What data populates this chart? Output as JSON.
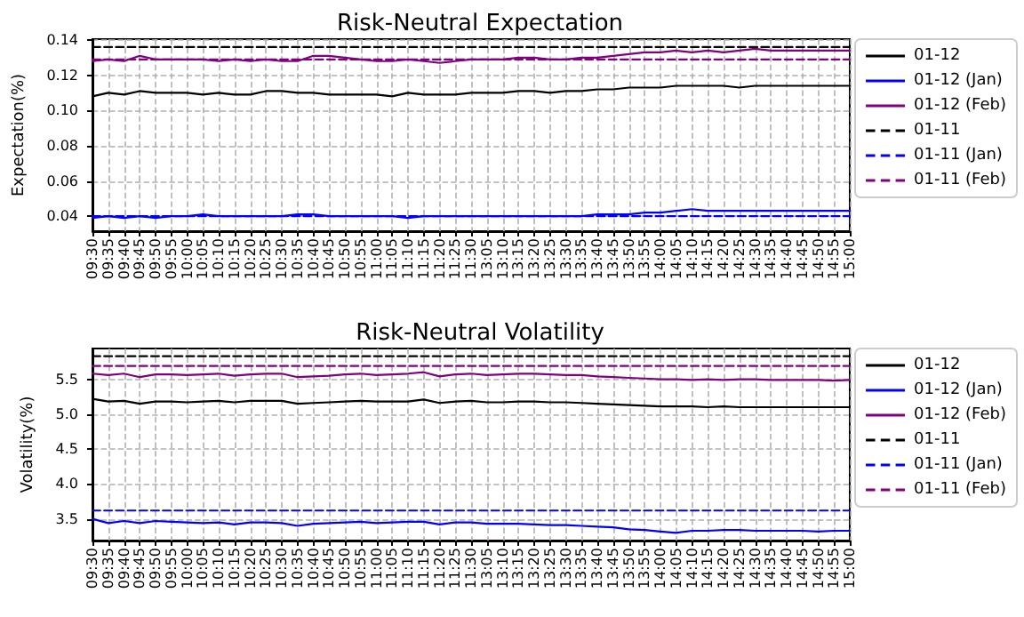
{
  "chart_data": [
    {
      "type": "line",
      "title": "Risk-Neutral Expectation",
      "ylabel": "Expectation(%)",
      "categories": [
        "09:30",
        "09:35",
        "09:40",
        "09:45",
        "09:50",
        "09:55",
        "10:00",
        "10:05",
        "10:10",
        "10:15",
        "10:20",
        "10:25",
        "10:30",
        "10:35",
        "10:40",
        "10:45",
        "10:50",
        "10:55",
        "11:00",
        "11:05",
        "11:10",
        "11:15",
        "11:20",
        "11:25",
        "11:30",
        "13:05",
        "13:10",
        "13:15",
        "13:20",
        "13:25",
        "13:30",
        "13:35",
        "13:40",
        "13:45",
        "13:50",
        "13:55",
        "14:00",
        "14:05",
        "14:10",
        "14:15",
        "14:20",
        "14:25",
        "14:30",
        "14:35",
        "14:40",
        "14:45",
        "14:50",
        "14:55",
        "15:00"
      ],
      "ylim": [
        0.0315,
        0.1405
      ],
      "yticks": [
        0.04,
        0.06,
        0.08,
        {
          "value": 0.1,
          "label": "0.10"
        },
        0.12,
        0.14
      ],
      "grid": true,
      "legend": "right",
      "marker": "none",
      "series": [
        {
          "name": "01-12",
          "color": "#000000",
          "line_style": "solid",
          "values": [
            0.108,
            0.11,
            0.109,
            0.111,
            0.11,
            0.11,
            0.11,
            0.109,
            0.11,
            0.109,
            0.109,
            0.111,
            0.111,
            0.11,
            0.11,
            0.109,
            0.109,
            0.109,
            0.109,
            0.108,
            0.11,
            0.109,
            0.109,
            0.109,
            0.11,
            0.11,
            0.11,
            0.111,
            0.111,
            0.11,
            0.111,
            0.111,
            0.112,
            0.112,
            0.113,
            0.113,
            0.113,
            0.114,
            0.114,
            0.114,
            0.114,
            0.113,
            0.114,
            0.114,
            0.114,
            0.114,
            0.114,
            0.114,
            0.114
          ]
        },
        {
          "name": "01-12 (Jan)",
          "color": "#0000ff",
          "line_style": "solid",
          "values": [
            0.039,
            0.04,
            0.039,
            0.04,
            0.039,
            0.04,
            0.04,
            0.041,
            0.04,
            0.04,
            0.04,
            0.04,
            0.04,
            0.041,
            0.041,
            0.04,
            0.04,
            0.04,
            0.04,
            0.04,
            0.039,
            0.04,
            0.04,
            0.04,
            0.04,
            0.04,
            0.04,
            0.04,
            0.04,
            0.04,
            0.04,
            0.04,
            0.041,
            0.041,
            0.041,
            0.042,
            0.042,
            0.043,
            0.044,
            0.043,
            0.043,
            0.043,
            0.043,
            0.043,
            0.043,
            0.043,
            0.043,
            0.043,
            0.043
          ]
        },
        {
          "name": "01-12 (Feb)",
          "color": "#800080",
          "line_style": "solid",
          "values": [
            0.128,
            0.129,
            0.128,
            0.131,
            0.129,
            0.129,
            0.129,
            0.129,
            0.128,
            0.129,
            0.128,
            0.129,
            0.128,
            0.128,
            0.131,
            0.131,
            0.13,
            0.129,
            0.128,
            0.128,
            0.129,
            0.128,
            0.127,
            0.128,
            0.129,
            0.129,
            0.129,
            0.13,
            0.13,
            0.129,
            0.129,
            0.13,
            0.13,
            0.131,
            0.132,
            0.133,
            0.133,
            0.134,
            0.133,
            0.134,
            0.133,
            0.134,
            0.135,
            0.134,
            0.134,
            0.134,
            0.134,
            0.134,
            0.134
          ]
        },
        {
          "name": "01-11",
          "color": "#000000",
          "line_style": "dashed",
          "values": [
            0.136,
            0.136,
            0.136,
            0.136,
            0.136,
            0.136,
            0.136,
            0.136,
            0.136,
            0.136,
            0.136,
            0.136,
            0.136,
            0.136,
            0.136,
            0.136,
            0.136,
            0.136,
            0.136,
            0.136,
            0.136,
            0.136,
            0.136,
            0.136,
            0.136,
            0.136,
            0.136,
            0.136,
            0.136,
            0.136,
            0.136,
            0.136,
            0.136,
            0.136,
            0.136,
            0.136,
            0.136,
            0.136,
            0.136,
            0.136,
            0.136,
            0.136,
            0.136,
            0.136,
            0.136,
            0.136,
            0.136,
            0.136,
            0.136
          ]
        },
        {
          "name": "01-11 (Jan)",
          "color": "#0000ff",
          "line_style": "dashed",
          "values": [
            0.04,
            0.04,
            0.04,
            0.04,
            0.04,
            0.04,
            0.04,
            0.04,
            0.04,
            0.04,
            0.04,
            0.04,
            0.04,
            0.04,
            0.04,
            0.04,
            0.04,
            0.04,
            0.04,
            0.04,
            0.04,
            0.04,
            0.04,
            0.04,
            0.04,
            0.04,
            0.04,
            0.04,
            0.04,
            0.04,
            0.04,
            0.04,
            0.04,
            0.04,
            0.04,
            0.04,
            0.04,
            0.04,
            0.04,
            0.04,
            0.04,
            0.04,
            0.04,
            0.04,
            0.04,
            0.04,
            0.04,
            0.04,
            0.04
          ]
        },
        {
          "name": "01-11 (Feb)",
          "color": "#800080",
          "line_style": "dashed",
          "values": [
            0.129,
            0.129,
            0.129,
            0.129,
            0.129,
            0.129,
            0.129,
            0.129,
            0.129,
            0.129,
            0.129,
            0.129,
            0.129,
            0.129,
            0.129,
            0.129,
            0.129,
            0.129,
            0.129,
            0.129,
            0.129,
            0.129,
            0.129,
            0.129,
            0.129,
            0.129,
            0.129,
            0.129,
            0.129,
            0.129,
            0.129,
            0.129,
            0.129,
            0.129,
            0.129,
            0.129,
            0.129,
            0.129,
            0.129,
            0.129,
            0.129,
            0.129,
            0.129,
            0.129,
            0.129,
            0.129,
            0.129,
            0.129,
            0.129
          ]
        }
      ]
    },
    {
      "type": "line",
      "title": "Risk-Neutral Volatility",
      "ylabel": "Volatility(%)",
      "categories": [
        "09:30",
        "09:35",
        "09:40",
        "09:45",
        "09:50",
        "09:55",
        "10:00",
        "10:05",
        "10:10",
        "10:15",
        "10:20",
        "10:25",
        "10:30",
        "10:35",
        "10:40",
        "10:45",
        "10:50",
        "10:55",
        "11:00",
        "11:05",
        "11:10",
        "11:15",
        "11:20",
        "11:25",
        "11:30",
        "13:05",
        "13:10",
        "13:15",
        "13:20",
        "13:25",
        "13:30",
        "13:35",
        "13:40",
        "13:45",
        "13:50",
        "13:55",
        "14:00",
        "14:05",
        "14:10",
        "14:15",
        "14:20",
        "14:25",
        "14:30",
        "14:35",
        "14:40",
        "14:45",
        "14:50",
        "14:55",
        "15:00"
      ],
      "ylim": [
        3.19,
        5.94
      ],
      "yticks": [
        3.5,
        {
          "value": 4,
          "label": "4.0"
        },
        4.5,
        {
          "value": 5,
          "label": "5.0"
        },
        5.5
      ],
      "grid": true,
      "legend": "right",
      "marker": "none",
      "series": [
        {
          "name": "01-12",
          "color": "#000000",
          "line_style": "solid",
          "values": [
            5.22,
            5.18,
            5.19,
            5.15,
            5.18,
            5.18,
            5.17,
            5.18,
            5.19,
            5.17,
            5.19,
            5.19,
            5.19,
            5.15,
            5.16,
            5.17,
            5.18,
            5.19,
            5.18,
            5.18,
            5.18,
            5.21,
            5.16,
            5.18,
            5.19,
            5.17,
            5.17,
            5.18,
            5.18,
            5.17,
            5.17,
            5.16,
            5.15,
            5.14,
            5.13,
            5.12,
            5.11,
            5.11,
            5.11,
            5.1,
            5.11,
            5.1,
            5.1,
            5.1,
            5.1,
            5.1,
            5.1,
            5.1,
            5.1
          ]
        },
        {
          "name": "01-12 (Jan)",
          "color": "#0000ff",
          "line_style": "solid",
          "values": [
            3.5,
            3.44,
            3.47,
            3.44,
            3.47,
            3.46,
            3.45,
            3.44,
            3.45,
            3.42,
            3.45,
            3.45,
            3.44,
            3.4,
            3.43,
            3.44,
            3.45,
            3.46,
            3.44,
            3.45,
            3.46,
            3.46,
            3.42,
            3.45,
            3.45,
            3.43,
            3.43,
            3.43,
            3.42,
            3.41,
            3.41,
            3.4,
            3.39,
            3.38,
            3.35,
            3.34,
            3.32,
            3.3,
            3.33,
            3.33,
            3.34,
            3.34,
            3.33,
            3.33,
            3.33,
            3.33,
            3.32,
            3.33,
            3.33
          ]
        },
        {
          "name": "01-12 (Feb)",
          "color": "#800080",
          "line_style": "solid",
          "values": [
            5.58,
            5.56,
            5.58,
            5.53,
            5.57,
            5.57,
            5.56,
            5.57,
            5.58,
            5.55,
            5.57,
            5.58,
            5.58,
            5.53,
            5.54,
            5.55,
            5.57,
            5.58,
            5.56,
            5.57,
            5.58,
            5.6,
            5.54,
            5.57,
            5.58,
            5.56,
            5.57,
            5.58,
            5.58,
            5.57,
            5.56,
            5.56,
            5.54,
            5.53,
            5.52,
            5.51,
            5.5,
            5.5,
            5.49,
            5.5,
            5.49,
            5.5,
            5.5,
            5.49,
            5.49,
            5.49,
            5.49,
            5.48,
            5.49
          ]
        },
        {
          "name": "01-11",
          "color": "#000000",
          "line_style": "dashed",
          "values": [
            5.83,
            5.83,
            5.83,
            5.83,
            5.83,
            5.83,
            5.83,
            5.83,
            5.83,
            5.83,
            5.83,
            5.83,
            5.83,
            5.83,
            5.83,
            5.83,
            5.83,
            5.83,
            5.83,
            5.83,
            5.83,
            5.83,
            5.83,
            5.83,
            5.83,
            5.83,
            5.83,
            5.83,
            5.83,
            5.83,
            5.83,
            5.83,
            5.83,
            5.83,
            5.83,
            5.83,
            5.83,
            5.83,
            5.83,
            5.83,
            5.83,
            5.83,
            5.83,
            5.83,
            5.83,
            5.83,
            5.83,
            5.83,
            5.83
          ]
        },
        {
          "name": "01-11 (Jan)",
          "color": "#0000ff",
          "line_style": "dashed",
          "values": [
            3.62,
            3.62,
            3.62,
            3.62,
            3.62,
            3.62,
            3.62,
            3.62,
            3.62,
            3.62,
            3.62,
            3.62,
            3.62,
            3.62,
            3.62,
            3.62,
            3.62,
            3.62,
            3.62,
            3.62,
            3.62,
            3.62,
            3.62,
            3.62,
            3.62,
            3.62,
            3.62,
            3.62,
            3.62,
            3.62,
            3.62,
            3.62,
            3.62,
            3.62,
            3.62,
            3.62,
            3.62,
            3.62,
            3.62,
            3.62,
            3.62,
            3.62,
            3.62,
            3.62,
            3.62,
            3.62,
            3.62,
            3.62,
            3.62
          ]
        },
        {
          "name": "01-11 (Feb)",
          "color": "#800080",
          "line_style": "dashed",
          "values": [
            5.69,
            5.69,
            5.69,
            5.69,
            5.69,
            5.69,
            5.69,
            5.69,
            5.69,
            5.69,
            5.69,
            5.69,
            5.69,
            5.69,
            5.69,
            5.69,
            5.69,
            5.69,
            5.69,
            5.69,
            5.69,
            5.69,
            5.69,
            5.69,
            5.69,
            5.69,
            5.69,
            5.69,
            5.69,
            5.69,
            5.69,
            5.69,
            5.69,
            5.69,
            5.69,
            5.69,
            5.69,
            5.69,
            5.69,
            5.69,
            5.69,
            5.69,
            5.69,
            5.69,
            5.69,
            5.69,
            5.69,
            5.69,
            5.69
          ]
        }
      ]
    }
  ]
}
